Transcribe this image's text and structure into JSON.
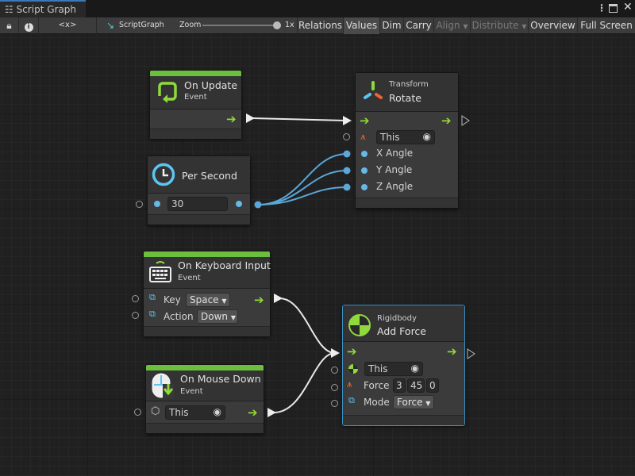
{
  "window": {
    "tab_title": "Script Graph",
    "menu_icon": "kebab-icon",
    "maximize_icon": "maximize-icon",
    "close_icon": "close-icon"
  },
  "toolbar": {
    "lock_icon": "lock-icon",
    "info_icon": "info-icon",
    "variables_label": "<x>",
    "graph_name": "ScriptGraph",
    "zoom_label": "Zoom",
    "zoom_value": "1x",
    "zoom_level": 1.0,
    "buttons": {
      "relations": "Relations",
      "values": "Values",
      "dim": "Dim",
      "carry": "Carry",
      "align": "Align",
      "distribute": "Distribute",
      "overview": "Overview",
      "fullscreen": "Full Screen"
    }
  },
  "nodes": {
    "on_update": {
      "title": "On Update",
      "subtitle": "Event"
    },
    "rotate": {
      "category": "Transform",
      "title": "Rotate",
      "target": "This",
      "inputs": [
        "X Angle",
        "Y Angle",
        "Z Angle"
      ]
    },
    "per_second": {
      "title": "Per Second",
      "value": "30"
    },
    "keyboard": {
      "title": "On Keyboard Input",
      "subtitle": "Event",
      "key_label": "Key",
      "key_value": "Space",
      "action_label": "Action",
      "action_value": "Down"
    },
    "mouse_down": {
      "title": "On Mouse Down",
      "subtitle": "Event",
      "target": "This"
    },
    "add_force": {
      "category": "Rigidbody",
      "title": "Add Force",
      "target": "This",
      "force_label": "Force",
      "force": [
        "3",
        "45",
        "0"
      ],
      "mode_label": "Mode",
      "mode_value": "Force"
    }
  },
  "colors": {
    "flow": "#8fd93a",
    "value_port": "#67b7e7",
    "event_bar": "#6cbf3c",
    "selection": "#3a8fc4"
  }
}
